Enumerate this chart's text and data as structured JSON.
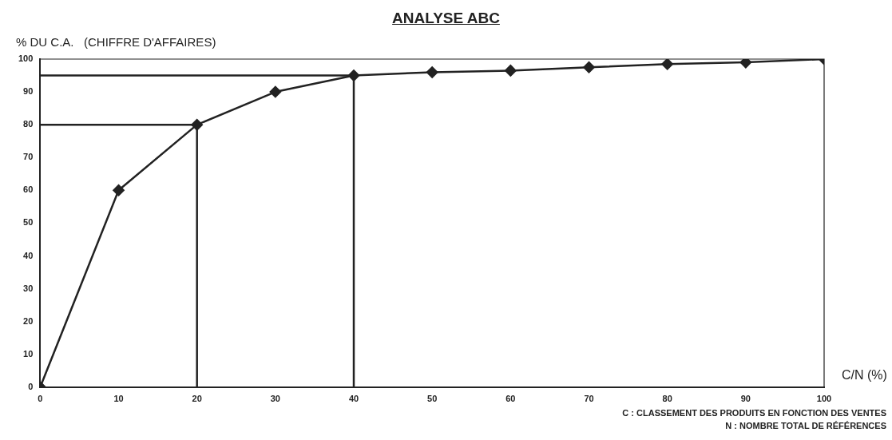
{
  "chart_data": {
    "type": "line",
    "title": "ANALYSE ABC",
    "ylabel": "% DU C.A.   (CHIFFRE D'AFFAIRES)",
    "xlabel": "C/N (%)",
    "x": [
      0,
      10,
      20,
      30,
      40,
      50,
      60,
      70,
      80,
      90,
      100
    ],
    "series": [
      {
        "color": "#222222",
        "values": [
          0,
          60,
          80,
          90,
          95,
          96,
          96.5,
          97.5,
          98.5,
          99,
          100
        ]
      },
      {
        "color": "#222222",
        "x": [
          0,
          20,
          20
        ],
        "values": [
          80,
          80,
          0
        ],
        "marker": "none"
      },
      {
        "color": "#222222",
        "x": [
          0,
          40,
          40
        ],
        "values": [
          95,
          95,
          0
        ],
        "marker": "none"
      }
    ],
    "marker": "diamond",
    "line_style": "solid",
    "grid": false,
    "legend": false,
    "xlim": [
      0,
      100
    ],
    "xticks": [
      0,
      10,
      20,
      30,
      40,
      50,
      60,
      70,
      80,
      90,
      100
    ],
    "ylim": [
      0,
      100
    ],
    "yticks": [
      0,
      10,
      20,
      30,
      40,
      50,
      60,
      70,
      80,
      90,
      100
    ],
    "annotations": [
      "C : CLASSEMENT DES PRODUITS EN FONCTION DES VENTES",
      "N : NOMBRE TOTAL DE RÉFÉRENCES"
    ]
  }
}
